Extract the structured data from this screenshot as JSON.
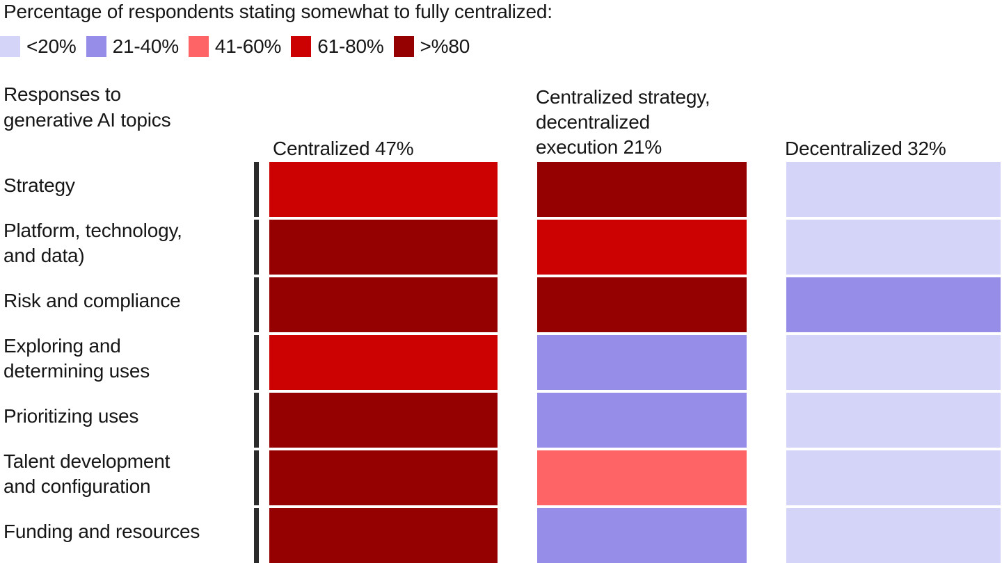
{
  "title": "Percentage of respondents stating somewhat to fully centralized:",
  "colors": {
    "bucket_lt20": "#d4d3f8",
    "bucket_21_40": "#968de8",
    "bucket_41_60": "#fe6365",
    "bucket_61_80": "#cb0201",
    "bucket_gt80": "#940100",
    "text": "#161616",
    "axis_bar": "#2b2b2b"
  },
  "legend": {
    "items": [
      {
        "label": "<20%",
        "color": "#d4d3f8"
      },
      {
        "label": "21-40%",
        "color": "#968de8"
      },
      {
        "label": "41-60%",
        "color": "#fe6365"
      },
      {
        "label": "61-80%",
        "color": "#cb0201"
      },
      {
        "label": ">%80",
        "color": "#940100"
      }
    ]
  },
  "row_axis_title_lines": [
    "Responses to",
    "generative AI topics"
  ],
  "column_headers": [
    {
      "lines": [
        "Centralized 47%"
      ]
    },
    {
      "lines": [
        "Centralized strategy,",
        "decentralized",
        "execution 21%"
      ]
    },
    {
      "lines": [
        "Decentralized 32%"
      ]
    }
  ],
  "row_labels": [
    {
      "lines": [
        "Strategy"
      ]
    },
    {
      "lines": [
        "Platform, technology,",
        "and data)"
      ]
    },
    {
      "lines": [
        "Risk and compliance"
      ]
    },
    {
      "lines": [
        "Exploring and",
        "determining uses"
      ]
    },
    {
      "lines": [
        "Prioritizing uses"
      ]
    },
    {
      "lines": [
        "Talent development",
        "and configuration"
      ]
    },
    {
      "lines": [
        "Funding and resources"
      ]
    }
  ],
  "chart_data": {
    "type": "heatmap",
    "title": "Percentage of respondents stating somewhat to fully centralized:",
    "row_axis_label": "Responses to generative AI topics",
    "rows": [
      "Strategy",
      "Platform, technology, and data)",
      "Risk and compliance",
      "Exploring and determining uses",
      "Prioritizing uses",
      "Talent development and configuration",
      "Funding and resources"
    ],
    "columns": [
      "Centralized 47%",
      "Centralized strategy, decentralized execution 21%",
      "Decentralized 32%"
    ],
    "legend_buckets": [
      "<20%",
      "21-40%",
      "41-60%",
      "61-80%",
      ">%80"
    ],
    "values": [
      [
        "61-80%",
        ">%80",
        "<20%"
      ],
      [
        ">%80",
        "61-80%",
        "<20%"
      ],
      [
        ">%80",
        ">%80",
        "21-40%"
      ],
      [
        "61-80%",
        "21-40%",
        "<20%"
      ],
      [
        ">%80",
        "21-40%",
        "<20%"
      ],
      [
        ">%80",
        "41-60%",
        "<20%"
      ],
      [
        ">%80",
        "21-40%",
        "<20%"
      ]
    ],
    "legend_position": "top",
    "grid": false
  }
}
